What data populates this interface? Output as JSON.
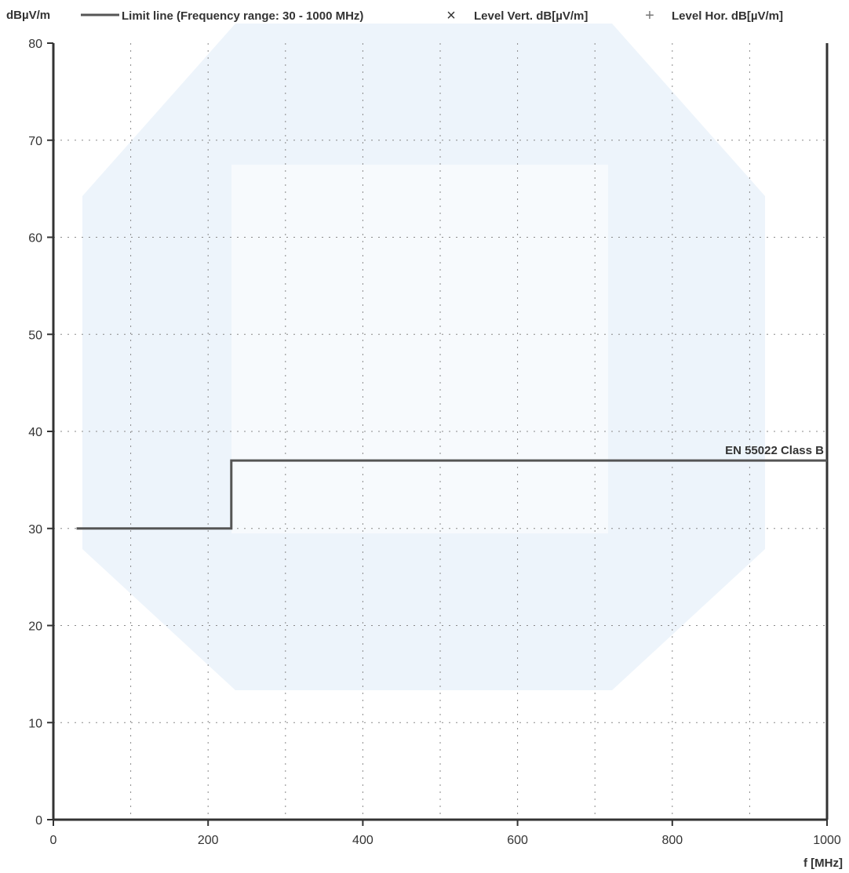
{
  "chart_data": {
    "type": "line",
    "ylabel": "dBµV/m",
    "xlabel": "f [MHz]",
    "xlim": [
      0,
      1000
    ],
    "ylim": [
      0,
      80
    ],
    "x_ticks": [
      0,
      200,
      400,
      600,
      800,
      1000
    ],
    "y_ticks": [
      0,
      10,
      20,
      30,
      40,
      50,
      60,
      70,
      80
    ],
    "grid": true,
    "x_grid_step": 100,
    "y_grid_step": 10,
    "legend_position": "top",
    "legend": [
      {
        "marker": "line",
        "label": "Limit line (Frequency range: 30 - 1000 MHz)"
      },
      {
        "marker": "×",
        "label": "Level Vert. dB[µV/m]"
      },
      {
        "marker": "+",
        "label": "Level Hor. dB[µV/m]"
      }
    ],
    "series": [
      {
        "name": "Limit line (Frequency range: 30 - 1000 MHz)",
        "x": [
          30,
          230,
          230,
          1000
        ],
        "y": [
          30,
          30,
          37,
          37
        ]
      }
    ],
    "annotations": [
      {
        "text": "EN 55022 Class B",
        "x": 1000,
        "y": 37
      }
    ]
  },
  "colors": {
    "axis": "#333333",
    "grid": "#8a8a8a",
    "limit_line": "#555555",
    "watermark": "#e3eef8"
  }
}
